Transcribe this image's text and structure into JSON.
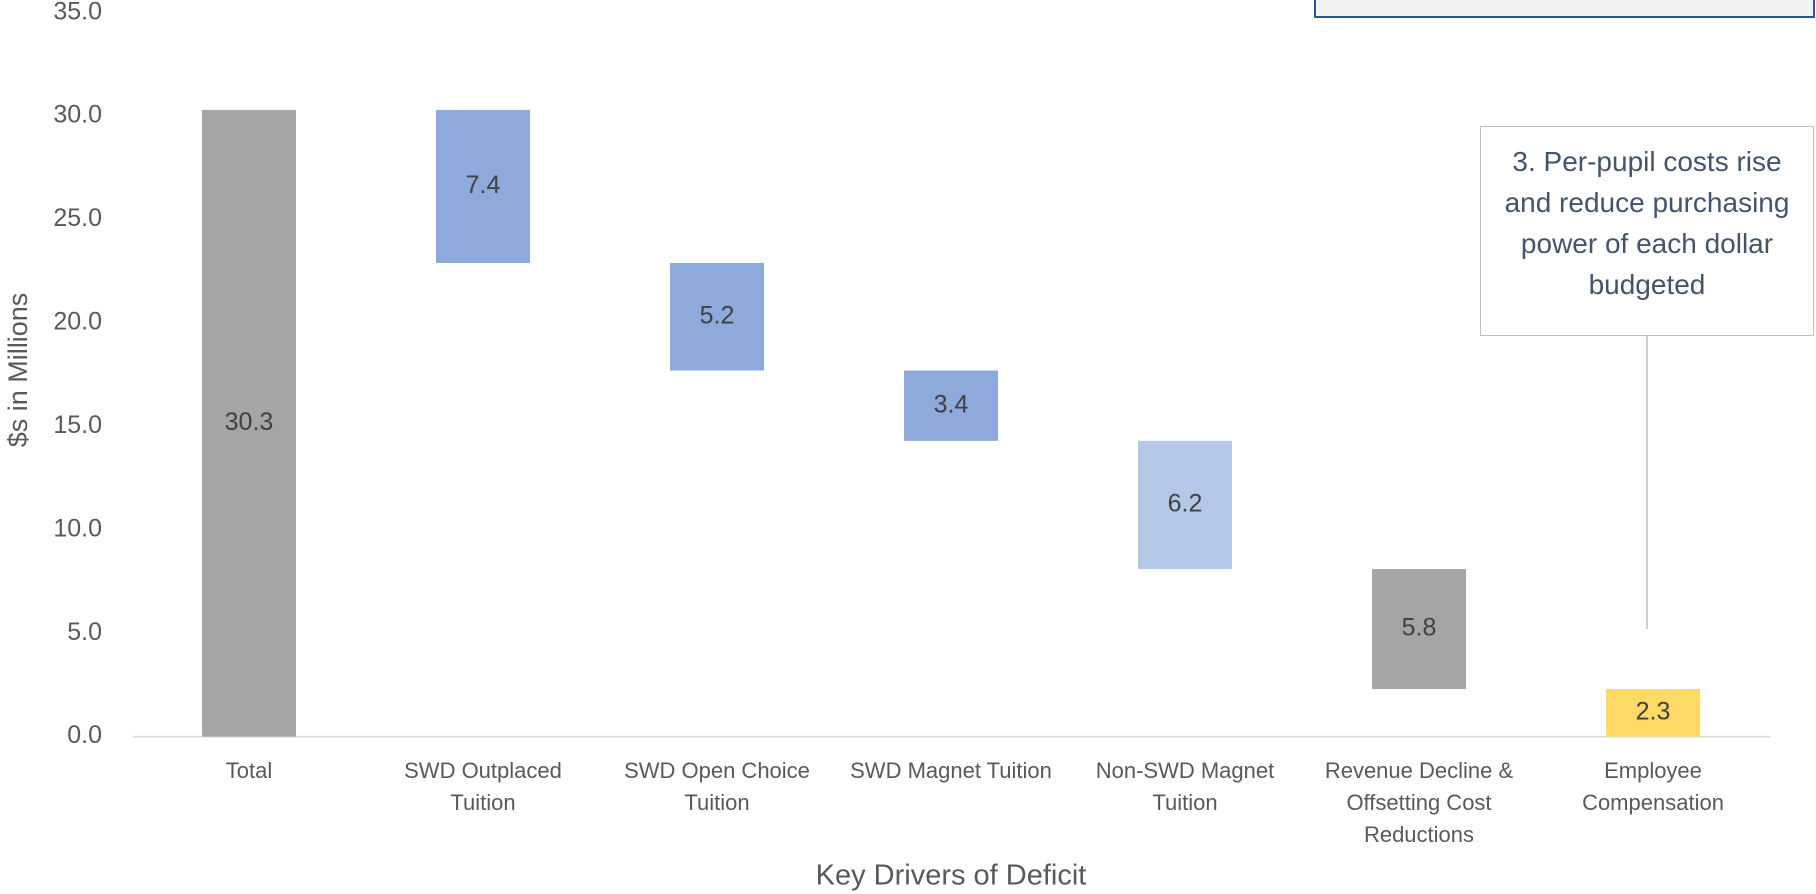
{
  "chart_data": {
    "type": "waterfall",
    "categories": [
      "Total",
      "SWD Outplaced Tuition",
      "SWD Open Choice Tuition",
      "SWD Magnet Tuition",
      "Non-SWD Magnet Tuition",
      "Revenue Decline & Offsetting Cost Reductions",
      "Employee Compensation"
    ],
    "values": [
      30.3,
      7.4,
      5.2,
      3.4,
      6.2,
      5.8,
      2.3
    ],
    "colors": [
      "#a5a5a5",
      "#8eaadb",
      "#8eaadb",
      "#8eaadb",
      "#b4c7e7",
      "#a5a5a5",
      "#ffd966"
    ],
    "x_label": "Key Drivers of Deficit",
    "y_label": "$s in Millions",
    "ylim": [
      0,
      35
    ],
    "yticks": [
      {
        "value": 0,
        "label": "0.0"
      },
      {
        "value": 5,
        "label": "5.0"
      },
      {
        "value": 10,
        "label": "10.0"
      },
      {
        "value": 15,
        "label": "15.0"
      },
      {
        "value": 20,
        "label": "20.0"
      },
      {
        "value": 25,
        "label": "25.0"
      },
      {
        "value": 30,
        "label": "30.0"
      },
      {
        "value": 35,
        "label": "35.0"
      }
    ],
    "annotation": "3. Per-pupil costs rise and reduce purchasing power of each dollar budgeted"
  }
}
